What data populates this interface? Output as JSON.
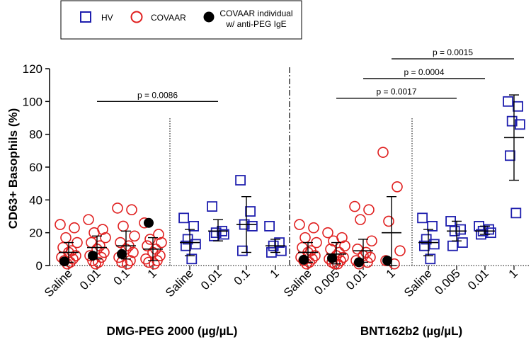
{
  "chart_data": {
    "type": "scatter",
    "ylabel": "CD63+ Basophils (%)",
    "ylim": [
      0,
      120
    ],
    "yticks": [
      0,
      20,
      40,
      60,
      80,
      100,
      120
    ],
    "legend": {
      "placement": "top",
      "entries": [
        {
          "key": "HV",
          "label": "HV",
          "marker": "square",
          "color": "#1f1fae"
        },
        {
          "key": "COVAAR",
          "label": "COVAAR",
          "marker": "circle-open",
          "color": "#e01f1f"
        },
        {
          "key": "IgE",
          "label_line1": "COVAAR individual",
          "label_line2": "w/ anti-PEG IgE",
          "marker": "circle-filled",
          "color": "#000000"
        }
      ]
    },
    "panels": [
      {
        "name": "DMG-PEG 2000 (µg/µL)",
        "categories": [
          {
            "label": "Saline",
            "group": "COVAAR",
            "mean": 8,
            "sd_low": 2,
            "sd_high": 14,
            "points": [
              25,
              23,
              17,
              14,
              11,
              9,
              8,
              6,
              5,
              4,
              3,
              2,
              1
            ],
            "ige": 2.5
          },
          {
            "label": "0.01",
            "group": "COVAAR",
            "mean": 11,
            "sd_low": 4,
            "sd_high": 18,
            "points": [
              28,
              22,
              20,
              17,
              14,
              12,
              10,
              8,
              6,
              5,
              3,
              2,
              1
            ],
            "ige": 6
          },
          {
            "label": "0.1",
            "group": "COVAAR",
            "mean": 12,
            "sd_low": 4,
            "sd_high": 21,
            "points": [
              35,
              34,
              24,
              18,
              14,
              12,
              10,
              8,
              5,
              3,
              2,
              1
            ],
            "ige": 7
          },
          {
            "label": "1",
            "group": "COVAAR",
            "mean": 10,
            "sd_low": 3,
            "sd_high": 17,
            "points": [
              26,
              19,
              16,
              14,
              12,
              10,
              8,
              6,
              4,
              3,
              2,
              1
            ],
            "ige": 26
          },
          {
            "label": "Saline",
            "group": "HV",
            "mean": 14,
            "sd_low": 6,
            "sd_high": 22,
            "points": [
              29,
              24,
              16,
              13,
              12,
              4
            ]
          },
          {
            "label": "0.01",
            "group": "HV",
            "mean": 21,
            "sd_low": 15,
            "sd_high": 28,
            "points": [
              36,
              21,
              20,
              19,
              18
            ]
          },
          {
            "label": "0.1",
            "group": "HV",
            "mean": 25,
            "sd_low": 8,
            "sd_high": 42,
            "points": [
              52,
              33,
              25,
              24,
              9
            ]
          },
          {
            "label": "1",
            "group": "HV",
            "mean": 12,
            "sd_low": 8,
            "sd_high": 16,
            "points": [
              24,
              14,
              12,
              9,
              8
            ]
          }
        ]
      },
      {
        "name": "BNT162b2 (µg/µL)",
        "categories": [
          {
            "label": "Saline",
            "group": "COVAAR",
            "mean": 8,
            "sd_low": 2,
            "sd_high": 14,
            "points": [
              25,
              23,
              17,
              14,
              11,
              9,
              8,
              6,
              5,
              4,
              3,
              2,
              1
            ],
            "ige": 3.5
          },
          {
            "label": "0.005",
            "group": "COVAAR",
            "mean": 7,
            "sd_low": 1,
            "sd_high": 14,
            "points": [
              20,
              17,
              15,
              12,
              10,
              8,
              6,
              5,
              4,
              3,
              2,
              1,
              1
            ],
            "ige": 4.5
          },
          {
            "label": "0.01",
            "group": "COVAAR",
            "mean": 9,
            "sd_low": 2,
            "sd_high": 16,
            "points": [
              36,
              34,
              28,
              15,
              10,
              8,
              6,
              5,
              3,
              2,
              1
            ],
            "ige": 2
          },
          {
            "label": "1",
            "group": "COVAAR",
            "mean": 20,
            "sd_low": 0,
            "sd_high": 42,
            "points": [
              69,
              48,
              27,
              9,
              3,
              1
            ],
            "ige": 3
          },
          {
            "label": "Saline",
            "group": "HV",
            "mean": 14,
            "sd_low": 6,
            "sd_high": 22,
            "points": [
              29,
              24,
              16,
              13,
              12,
              4
            ]
          },
          {
            "label": "0.005",
            "group": "HV",
            "mean": 21,
            "sd_low": 15,
            "sd_high": 27,
            "points": [
              27,
              22,
              21,
              14,
              12
            ]
          },
          {
            "label": "0.01",
            "group": "HV",
            "mean": 21,
            "sd_low": 19,
            "sd_high": 24,
            "points": [
              24,
              22,
              21,
              20,
              19
            ]
          },
          {
            "label": "1",
            "group": "HV",
            "mean": 78,
            "sd_low": 52,
            "sd_high": 104,
            "points": [
              100,
              97,
              88,
              86,
              67,
              32
            ]
          }
        ]
      }
    ],
    "annotations": [
      {
        "text": "p = 0.0086",
        "from_cat": 1,
        "to_cat": 5,
        "y": 100
      },
      {
        "text": "p = 0.0017",
        "from_cat": 9,
        "to_cat": 13,
        "y": 102
      },
      {
        "text": "p = 0.0004",
        "from_cat": 10,
        "to_cat": 14,
        "y": 114
      },
      {
        "text": "p = 0.0015",
        "from_cat": 11,
        "to_cat": 15,
        "y": 126
      }
    ]
  }
}
